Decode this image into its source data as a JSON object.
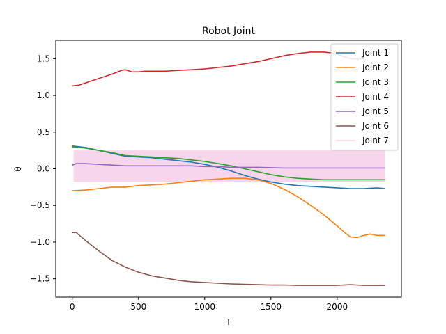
{
  "chart_data": {
    "type": "line",
    "title": "Robot Joint",
    "xlabel": "T",
    "ylabel": "θ",
    "xlim": [
      -125,
      2485
    ],
    "ylim": [
      -1.75,
      1.75
    ],
    "xticks": [
      0,
      500,
      1000,
      1500,
      2000
    ],
    "xtick_labels": [
      "0",
      "500",
      "1000",
      "1500",
      "2000"
    ],
    "yticks": [
      -1.5,
      -1.0,
      -0.5,
      0.0,
      0.5,
      1.0,
      1.5
    ],
    "ytick_labels": [
      "−1.5",
      "−1.0",
      "−0.5",
      "0.0",
      "0.5",
      "1.0",
      "1.5"
    ],
    "grid": false,
    "legend_position": "top-right",
    "series": [
      {
        "name": "Joint 1",
        "color": "#1f77b4",
        "x": [
          0,
          100,
          200,
          300,
          400,
          500,
          600,
          700,
          800,
          900,
          1000,
          1100,
          1200,
          1300,
          1400,
          1500,
          1600,
          1700,
          1800,
          1900,
          2000,
          2100,
          2200,
          2300,
          2360
        ],
        "y": [
          0.31,
          0.29,
          0.25,
          0.21,
          0.17,
          0.16,
          0.15,
          0.13,
          0.11,
          0.09,
          0.06,
          0.02,
          -0.03,
          -0.09,
          -0.14,
          -0.18,
          -0.21,
          -0.23,
          -0.24,
          -0.25,
          -0.26,
          -0.27,
          -0.27,
          -0.26,
          -0.27
        ]
      },
      {
        "name": "Joint 2",
        "color": "#ff7f0e",
        "x": [
          0,
          100,
          200,
          300,
          400,
          500,
          600,
          700,
          800,
          900,
          1000,
          1100,
          1200,
          1300,
          1400,
          1500,
          1600,
          1700,
          1800,
          1900,
          2000,
          2050,
          2100,
          2150,
          2200,
          2250,
          2300,
          2360
        ],
        "y": [
          -0.3,
          -0.29,
          -0.27,
          -0.25,
          -0.25,
          -0.23,
          -0.22,
          -0.21,
          -0.19,
          -0.17,
          -0.15,
          -0.14,
          -0.13,
          -0.13,
          -0.15,
          -0.2,
          -0.28,
          -0.38,
          -0.5,
          -0.63,
          -0.78,
          -0.86,
          -0.93,
          -0.94,
          -0.91,
          -0.89,
          -0.91,
          -0.91
        ]
      },
      {
        "name": "Joint 3",
        "color": "#2ca02c",
        "x": [
          0,
          100,
          200,
          300,
          400,
          500,
          600,
          700,
          800,
          900,
          1000,
          1100,
          1200,
          1300,
          1400,
          1500,
          1600,
          1700,
          1800,
          1900,
          2000,
          2100,
          2200,
          2300,
          2360
        ],
        "y": [
          0.3,
          0.28,
          0.25,
          0.22,
          0.18,
          0.17,
          0.16,
          0.15,
          0.14,
          0.12,
          0.1,
          0.07,
          0.04,
          0.0,
          -0.04,
          -0.08,
          -0.11,
          -0.13,
          -0.14,
          -0.15,
          -0.15,
          -0.15,
          -0.15,
          -0.15,
          -0.15
        ]
      },
      {
        "name": "Joint 4",
        "color": "#d62728",
        "x": [
          0,
          50,
          100,
          200,
          300,
          370,
          400,
          450,
          500,
          550,
          600,
          700,
          800,
          900,
          1000,
          1100,
          1200,
          1300,
          1400,
          1500,
          1600,
          1700,
          1800,
          1900,
          1950,
          2000,
          2050,
          2100,
          2200
        ],
        "y": [
          1.13,
          1.14,
          1.17,
          1.23,
          1.29,
          1.34,
          1.35,
          1.32,
          1.32,
          1.33,
          1.33,
          1.33,
          1.34,
          1.35,
          1.36,
          1.38,
          1.4,
          1.43,
          1.46,
          1.5,
          1.54,
          1.57,
          1.59,
          1.59,
          1.58,
          1.56,
          1.53,
          1.5,
          1.5
        ]
      },
      {
        "name": "Joint 5",
        "color": "#9467bd",
        "x": [
          0,
          30,
          60,
          100,
          200,
          300,
          400,
          500,
          600,
          700,
          800,
          900,
          1000,
          1100,
          1200,
          1400,
          1600,
          1800,
          2000,
          2200,
          2360
        ],
        "y": [
          0.05,
          0.07,
          0.07,
          0.07,
          0.06,
          0.05,
          0.04,
          0.04,
          0.04,
          0.04,
          0.04,
          0.04,
          0.03,
          0.03,
          0.02,
          0.02,
          0.01,
          0.01,
          0.01,
          0.01,
          0.01
        ]
      },
      {
        "name": "Joint 6",
        "color": "#8c564b",
        "x": [
          0,
          30,
          100,
          200,
          300,
          400,
          500,
          600,
          700,
          800,
          900,
          1000,
          1100,
          1200,
          1300,
          1400,
          1500,
          1600,
          1700,
          1800,
          1900,
          2000,
          2100,
          2200,
          2300,
          2360
        ],
        "y": [
          -0.87,
          -0.87,
          -0.98,
          -1.12,
          -1.25,
          -1.34,
          -1.41,
          -1.46,
          -1.49,
          -1.52,
          -1.54,
          -1.55,
          -1.56,
          -1.57,
          -1.575,
          -1.58,
          -1.585,
          -1.585,
          -1.59,
          -1.59,
          -1.59,
          -1.59,
          -1.58,
          -1.59,
          -1.59,
          -1.59
        ]
      }
    ],
    "band": {
      "name": "Joint 7",
      "color": "#f7d6ec",
      "x_range": [
        10,
        2360
      ],
      "y_range": [
        -0.18,
        0.25
      ]
    }
  }
}
